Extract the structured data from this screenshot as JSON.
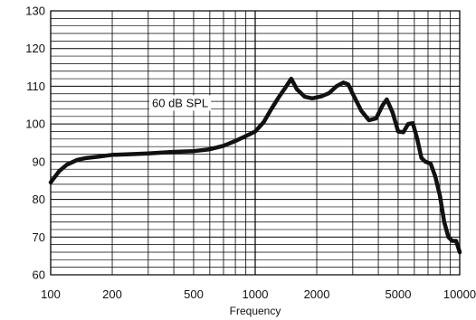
{
  "chart_data": {
    "type": "line",
    "title": "",
    "xlabel": "Frequency",
    "ylabel": "",
    "x_scale": "log",
    "xlim": [
      100,
      10000
    ],
    "ylim": [
      60,
      130
    ],
    "grid": true,
    "x_ticks": [
      100,
      200,
      500,
      1000,
      2000,
      5000,
      10000
    ],
    "x_tick_labels": [
      "100",
      "200",
      "500",
      "1000",
      "2000",
      "5000",
      "10000"
    ],
    "y_ticks": [
      60,
      70,
      80,
      90,
      100,
      110,
      120,
      130
    ],
    "y_tick_labels": [
      "60",
      "70",
      "80",
      "90",
      "100",
      "110",
      "120",
      "130"
    ],
    "annotation": "60 dB SPL",
    "series": [
      {
        "x": [
          100,
          110,
          120,
          135,
          150,
          170,
          200,
          250,
          300,
          400,
          500,
          600,
          700,
          800,
          900,
          1000,
          1100,
          1200,
          1300,
          1400,
          1500,
          1600,
          1750,
          1900,
          2100,
          2300,
          2500,
          2700,
          2850,
          3000,
          3300,
          3600,
          3900,
          4200,
          4400,
          4700,
          5000,
          5300,
          5600,
          5900,
          6200,
          6500,
          6800,
          7200,
          7600,
          8000,
          8400,
          8800,
          9200,
          9600,
          10000
        ],
        "y": [
          84.5,
          87.5,
          89.2,
          90.5,
          91.0,
          91.3,
          91.8,
          92.0,
          92.2,
          92.6,
          92.8,
          93.3,
          94.2,
          95.5,
          96.8,
          98.0,
          100.5,
          104.0,
          107.0,
          109.5,
          112.0,
          109.2,
          107.2,
          106.8,
          107.3,
          108.2,
          110.0,
          111.0,
          110.5,
          108.0,
          103.5,
          101.0,
          101.5,
          105.0,
          106.5,
          103.0,
          98.0,
          97.8,
          100.0,
          100.2,
          96.0,
          91.0,
          90.0,
          89.5,
          86.0,
          81.0,
          74.0,
          70.0,
          69.0,
          69.0,
          66.0
        ]
      }
    ]
  }
}
